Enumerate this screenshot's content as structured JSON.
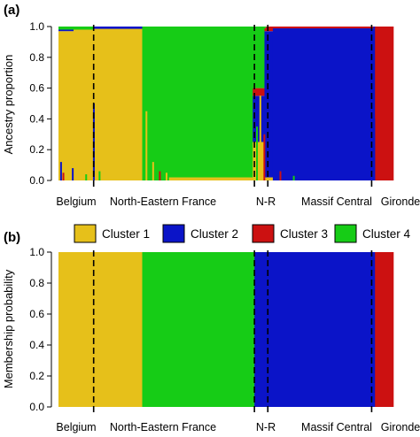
{
  "colors": {
    "cluster1": "#E6C01A",
    "cluster2": "#0B14C8",
    "cluster3": "#CC1111",
    "cluster4": "#16CC16"
  },
  "chart_data": [
    {
      "panel": "(a)",
      "type": "bar",
      "subtype": "stacked-admixture",
      "ylabel": "Ancestry proportion",
      "ylim": [
        0,
        1
      ],
      "yticks": [
        "0.0",
        "0.2",
        "0.4",
        "0.6",
        "0.8",
        "1.0"
      ],
      "groups": [
        "Belgium",
        "North-Eastern France",
        "N-R",
        "Massif Central",
        "Gironde"
      ],
      "segments": [
        {
          "name": "Cluster 1",
          "color": "#E6C01A",
          "values": [
            [
              0,
              0.93,
              "Cluster 1"
            ]
          ]
        }
      ],
      "individual_blocks": [
        {
          "from": 0.0,
          "to": 0.045,
          "composition": {
            "Cluster 1": 0.97,
            "Cluster 2": 0.01,
            "Cluster 3": 0.0,
            "Cluster 4": 0.02
          }
        },
        {
          "from": 0.045,
          "to": 0.105,
          "composition": {
            "Cluster 1": 0.98,
            "Cluster 2": 0.0,
            "Cluster 3": 0.0,
            "Cluster 4": 0.02
          }
        },
        {
          "from": 0.105,
          "to": 0.25,
          "composition": {
            "Cluster 1": 0.99,
            "Cluster 2": 0.0,
            "Cluster 3": 0.0,
            "Cluster 4": 0.01
          }
        },
        {
          "from": 0.25,
          "to": 0.33,
          "composition": {
            "Cluster 1": 0.0,
            "Cluster 2": 0.0,
            "Cluster 3": 0.0,
            "Cluster 4": 1.0
          }
        },
        {
          "from": 0.33,
          "to": 0.58,
          "composition": {
            "Cluster 1": 0.02,
            "Cluster 2": 0.0,
            "Cluster 3": 0.0,
            "Cluster 4": 0.98
          }
        },
        {
          "from": 0.58,
          "to": 0.615,
          "composition": {
            "Cluster 1": 0.25,
            "Cluster 2": 0.3,
            "Cluster 3": 0.05,
            "Cluster 4": 0.4
          }
        },
        {
          "from": 0.615,
          "to": 0.64,
          "composition": {
            "Cluster 1": 0.02,
            "Cluster 2": 0.95,
            "Cluster 3": 0.02,
            "Cluster 4": 0.01
          }
        },
        {
          "from": 0.64,
          "to": 0.945,
          "composition": {
            "Cluster 1": 0.0,
            "Cluster 2": 1.0,
            "Cluster 3": 0.0,
            "Cluster 4": 0.0
          }
        },
        {
          "from": 0.945,
          "to": 1.0,
          "composition": {
            "Cluster 1": 0.0,
            "Cluster 2": 0.0,
            "Cluster 3": 1.0,
            "Cluster 4": 0.0
          }
        }
      ],
      "group_boundaries": [
        0.105,
        0.585,
        0.625,
        0.935
      ]
    },
    {
      "panel": "(b)",
      "type": "bar",
      "subtype": "stacked-membership",
      "ylabel": "Membership probability",
      "ylim": [
        0,
        1
      ],
      "yticks": [
        "0.0",
        "0.2",
        "0.4",
        "0.6",
        "0.8",
        "1.0"
      ],
      "groups": [
        "Belgium",
        "North-Eastern France",
        "N-R",
        "Massif Central",
        "Gironde"
      ],
      "legend": [
        {
          "name": "Cluster 1",
          "color": "#E6C01A"
        },
        {
          "name": "Cluster 2",
          "color": "#0B14C8"
        },
        {
          "name": "Cluster 3",
          "color": "#CC1111"
        },
        {
          "name": "Cluster 4",
          "color": "#16CC16"
        }
      ],
      "blocks": [
        {
          "from": 0.0,
          "to": 0.25,
          "cluster": "Cluster 1"
        },
        {
          "from": 0.25,
          "to": 0.585,
          "cluster": "Cluster 4"
        },
        {
          "from": 0.585,
          "to": 0.625,
          "cluster": "Cluster 2"
        },
        {
          "from": 0.625,
          "to": 0.945,
          "cluster": "Cluster 2"
        },
        {
          "from": 0.945,
          "to": 1.0,
          "cluster": "Cluster 3"
        }
      ],
      "group_boundaries": [
        0.105,
        0.585,
        0.625,
        0.935
      ]
    }
  ]
}
